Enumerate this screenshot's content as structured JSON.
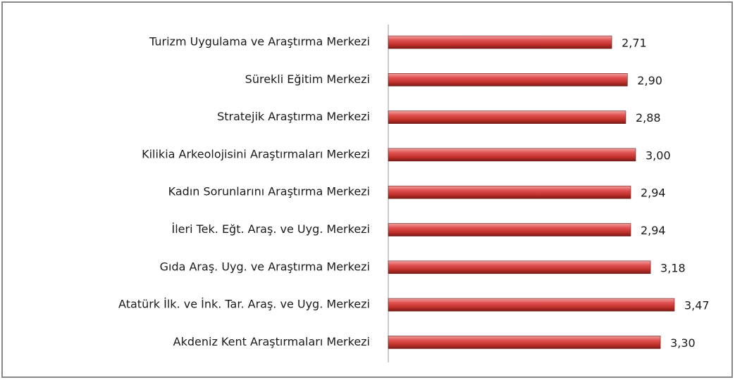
{
  "chart_data": {
    "type": "bar",
    "orientation": "horizontal",
    "color": "#c0392b",
    "categories": [
      "Turizm Uygulama ve Araştırma Merkezi",
      "Sürekli Eğitim Merkezi",
      "Stratejik Araştırma Merkezi",
      "Kilikia Arkeolojisini Araştırmaları Merkezi",
      "Kadın Sorunlarını Araştırma Merkezi",
      "İleri Tek. Eğt. Araş. ve Uyg. Merkezi",
      "Gıda Araş. Uyg. ve Araştırma Merkezi",
      "Atatürk İlk. ve İnk. Tar. Araş. ve Uyg. Merkezi",
      "Akdeniz Kent Araştırmaları Merkezi"
    ],
    "values": [
      2.71,
      2.9,
      2.88,
      3.0,
      2.94,
      2.94,
      3.18,
      3.47,
      3.3
    ],
    "value_labels": [
      "2,71",
      "2,90",
      "2,88",
      "3,00",
      "2,94",
      "2,94",
      "3,18",
      "3,47",
      "3,30"
    ]
  }
}
